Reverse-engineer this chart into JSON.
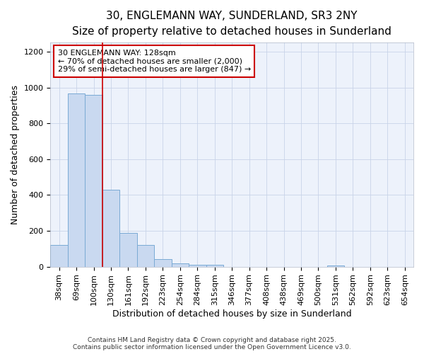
{
  "title_line1": "30, ENGLEMANN WAY, SUNDERLAND, SR3 2NY",
  "title_line2": "Size of property relative to detached houses in Sunderland",
  "xlabel": "Distribution of detached houses by size in Sunderland",
  "ylabel": "Number of detached properties",
  "categories": [
    "38sqm",
    "69sqm",
    "100sqm",
    "130sqm",
    "161sqm",
    "192sqm",
    "223sqm",
    "254sqm",
    "284sqm",
    "315sqm",
    "346sqm",
    "377sqm",
    "408sqm",
    "438sqm",
    "469sqm",
    "500sqm",
    "531sqm",
    "562sqm",
    "592sqm",
    "623sqm",
    "654sqm"
  ],
  "values": [
    120,
    965,
    960,
    430,
    190,
    120,
    42,
    18,
    12,
    10,
    0,
    0,
    0,
    0,
    0,
    0,
    8,
    0,
    0,
    0,
    0
  ],
  "bar_color": "#c9d9f0",
  "bar_edge_color": "#7aaad4",
  "grid_color": "#c8d4e8",
  "background_color": "#edf2fb",
  "vline_color": "#cc0000",
  "annotation_line1": "30 ENGLEMANN WAY: 128sqm",
  "annotation_line2": "← 70% of detached houses are smaller (2,000)",
  "annotation_line3": "29% of semi-detached houses are larger (847) →",
  "annotation_box_edgecolor": "#cc0000",
  "ylim": [
    0,
    1250
  ],
  "yticks": [
    0,
    200,
    400,
    600,
    800,
    1000,
    1200
  ],
  "footer_line1": "Contains HM Land Registry data © Crown copyright and database right 2025.",
  "footer_line2": "Contains public sector information licensed under the Open Government Licence v3.0.",
  "title_fontsize": 11,
  "subtitle_fontsize": 9.5,
  "axis_label_fontsize": 9,
  "tick_fontsize": 8,
  "annotation_fontsize": 8,
  "footer_fontsize": 6.5
}
